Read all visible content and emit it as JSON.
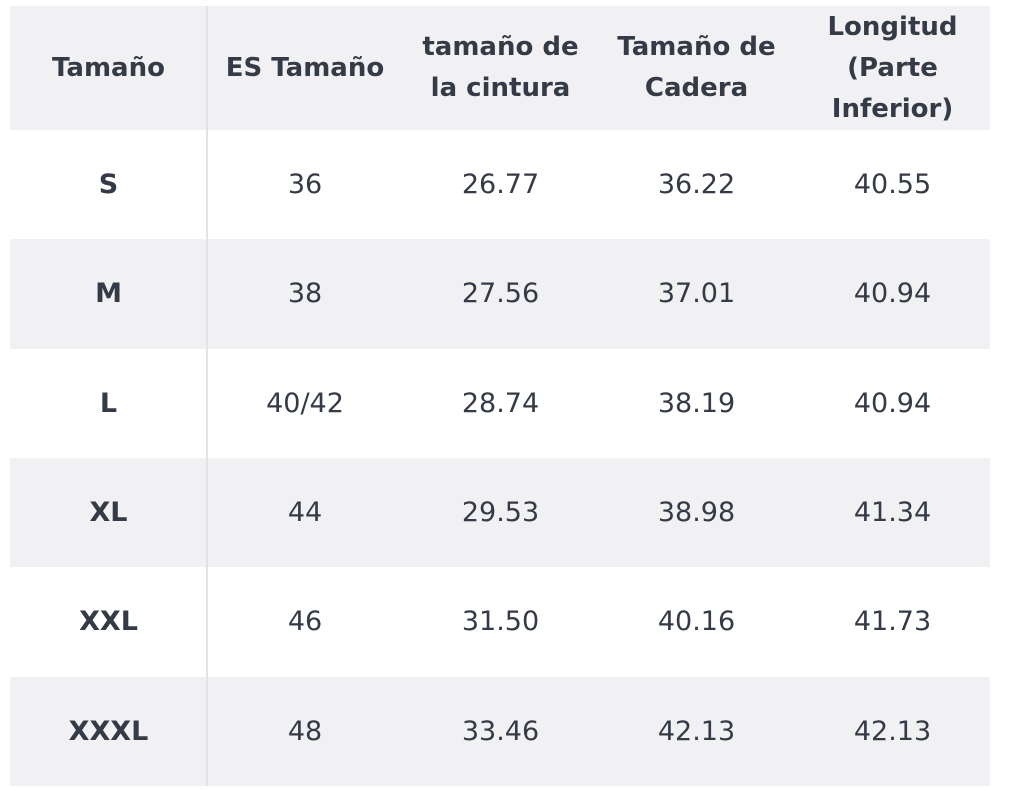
{
  "table": {
    "header": [
      [
        "Tamaño"
      ],
      [
        "ES Tamaño"
      ],
      [
        "tamaño de",
        "la cintura"
      ],
      [
        "Tamaño de",
        "Cadera"
      ],
      [
        "Longitud",
        "(Parte",
        "Inferior)"
      ]
    ],
    "rows": [
      [
        "S",
        "36",
        "26.77",
        "36.22",
        "40.55"
      ],
      [
        "M",
        "38",
        "27.56",
        "37.01",
        "40.94"
      ],
      [
        "L",
        "40/42",
        "28.74",
        "38.19",
        "40.94"
      ],
      [
        "XL",
        "44",
        "29.53",
        "38.98",
        "41.34"
      ],
      [
        "XXL",
        "46",
        "31.50",
        "40.16",
        "41.73"
      ],
      [
        "XXXL",
        "48",
        "33.46",
        "42.13",
        "42.13"
      ]
    ]
  }
}
